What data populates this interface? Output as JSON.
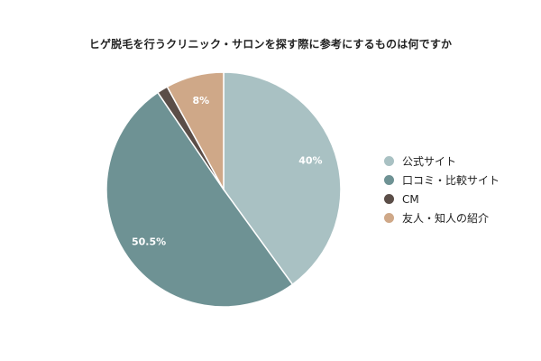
{
  "chart_data": {
    "type": "pie",
    "title": "ヒゲ脱毛を行うクリニック・サロンを探す際に参考にするものは何ですか",
    "categories": [
      "公式サイト",
      "口コミ・比較サイト",
      "CM",
      "友人・知人の紹介"
    ],
    "values": [
      40,
      50.5,
      1.5,
      8
    ],
    "data_labels": [
      "40%",
      "50.5%",
      "",
      "8%"
    ],
    "colors": [
      "#a9c1c3",
      "#6e9294",
      "#5b4e48",
      "#cfa888"
    ],
    "legend_position": "right"
  }
}
